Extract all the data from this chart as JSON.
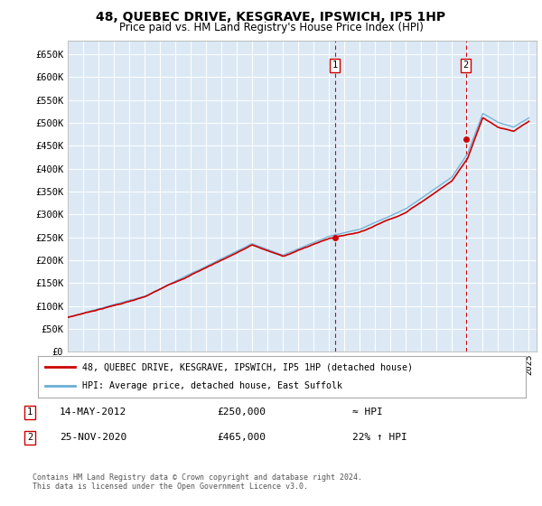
{
  "title": "48, QUEBEC DRIVE, KESGRAVE, IPSWICH, IP5 1HP",
  "subtitle": "Price paid vs. HM Land Registry's House Price Index (HPI)",
  "background_color": "#dce9f5",
  "plot_bg_color": "#dce9f5",
  "ylim": [
    0,
    680000
  ],
  "yticks": [
    0,
    50000,
    100000,
    150000,
    200000,
    250000,
    300000,
    350000,
    400000,
    450000,
    500000,
    550000,
    600000,
    650000
  ],
  "ytick_labels": [
    "£0",
    "£50K",
    "£100K",
    "£150K",
    "£200K",
    "£250K",
    "£300K",
    "£350K",
    "£400K",
    "£450K",
    "£500K",
    "£550K",
    "£600K",
    "£650K"
  ],
  "sale1_date": 2012.37,
  "sale1_price": 250000,
  "sale1_label": "1",
  "sale2_date": 2020.9,
  "sale2_price": 465000,
  "sale2_label": "2",
  "legend_line1": "48, QUEBEC DRIVE, KESGRAVE, IPSWICH, IP5 1HP (detached house)",
  "legend_line2": "HPI: Average price, detached house, East Suffolk",
  "note1_label": "1",
  "note1_date": "14-MAY-2012",
  "note1_price": "£250,000",
  "note1_hpi": "≈ HPI",
  "note2_label": "2",
  "note2_date": "25-NOV-2020",
  "note2_price": "£465,000",
  "note2_hpi": "22% ↑ HPI",
  "footer": "Contains HM Land Registry data © Crown copyright and database right 2024.\nThis data is licensed under the Open Government Licence v3.0.",
  "hpi_color": "#6baed6",
  "price_color": "#cc0000",
  "sale_marker_color": "#cc0000",
  "dashed_line_color": "#cc0000",
  "xlim_left": 1995,
  "xlim_right": 2025.5
}
